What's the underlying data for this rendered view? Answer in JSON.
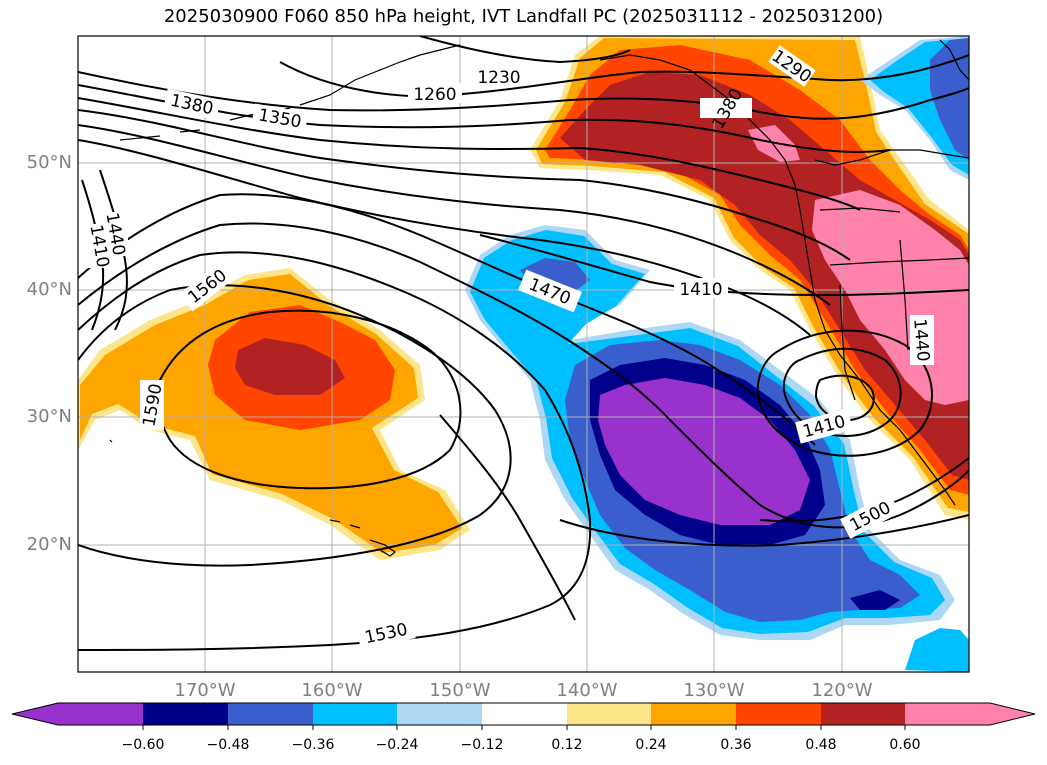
{
  "title": "2025030900 F060 850 hPa height, IVT Landfall PC (2025031112 - 2025031200)",
  "map": {
    "lon_range": [
      -180,
      -110
    ],
    "lat_range": [
      10,
      60
    ],
    "latitude_labels": [
      "50°N",
      "40°N",
      "30°N",
      "20°N"
    ],
    "longitude_labels": [
      "170°W",
      "160°W",
      "150°W",
      "140°W",
      "130°W",
      "120°W"
    ],
    "grid": true,
    "coastlines": true,
    "height_contour_labels": [
      "1230",
      "1260",
      "1290",
      "1350",
      "1380",
      "1440",
      "1410",
      "1560",
      "1590",
      "1470",
      "1410",
      "1380",
      "1440",
      "1410",
      "1500",
      "1530"
    ]
  },
  "colorbar": {
    "tick_labels": [
      "−0.60",
      "−0.48",
      "−0.36",
      "−0.24",
      "−0.12",
      "0.12",
      "0.24",
      "0.36",
      "0.48",
      "0.60"
    ],
    "colors": [
      "#9932cc",
      "#00008b",
      "#3a5fcd",
      "#00bfff",
      "#add8f5",
      "#ffffff",
      "#fde68a",
      "#ffa500",
      "#ff4500",
      "#b22222",
      "#ff82ab"
    ],
    "extend": "both"
  }
}
